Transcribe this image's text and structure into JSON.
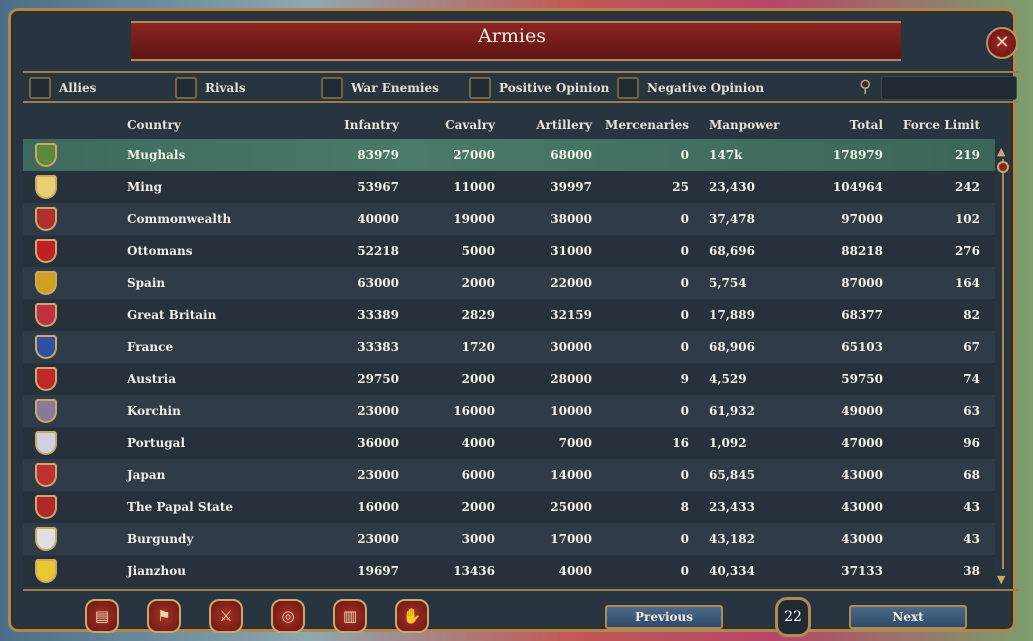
{
  "window": {
    "title": "Armies",
    "close_icon": "close-icon"
  },
  "filters": [
    {
      "label": "Allies"
    },
    {
      "label": "Rivals"
    },
    {
      "label": "War Enemies"
    },
    {
      "label": "Positive Opinion"
    },
    {
      "label": "Negative Opinion"
    }
  ],
  "search": {
    "value": "",
    "icon": "magnifier-icon"
  },
  "columns": {
    "country": "Country",
    "infantry": "Infantry",
    "cavalry": "Cavalry",
    "artillery": "Artillery",
    "mercenaries": "Mercenaries",
    "manpower": "Manpower",
    "total": "Total",
    "force_limit": "Force Limit"
  },
  "rows": [
    {
      "country": "Mughals",
      "infantry": "83979",
      "cavalry": "27000",
      "artillery": "68000",
      "mercenaries": "0",
      "manpower": "147k",
      "total": "178979",
      "force_limit": "219",
      "flag": "#5a8a3a",
      "selected": true
    },
    {
      "country": "Ming",
      "infantry": "53967",
      "cavalry": "11000",
      "artillery": "39997",
      "mercenaries": "25",
      "manpower": "23,430",
      "total": "104964",
      "force_limit": "242",
      "flag": "#e8d070"
    },
    {
      "country": "Commonwealth",
      "infantry": "40000",
      "cavalry": "19000",
      "artillery": "38000",
      "mercenaries": "0",
      "manpower": "37,478",
      "total": "97000",
      "force_limit": "102",
      "flag": "#b03030"
    },
    {
      "country": "Ottomans",
      "infantry": "52218",
      "cavalry": "5000",
      "artillery": "31000",
      "mercenaries": "0",
      "manpower": "68,696",
      "total": "88218",
      "force_limit": "276",
      "flag": "#c02020"
    },
    {
      "country": "Spain",
      "infantry": "63000",
      "cavalry": "2000",
      "artillery": "22000",
      "mercenaries": "0",
      "manpower": "5,754",
      "total": "87000",
      "force_limit": "164",
      "flag": "#d0a020"
    },
    {
      "country": "Great Britain",
      "infantry": "33389",
      "cavalry": "2829",
      "artillery": "32159",
      "mercenaries": "0",
      "manpower": "17,889",
      "total": "68377",
      "force_limit": "82",
      "flag": "#c03040"
    },
    {
      "country": "France",
      "infantry": "33383",
      "cavalry": "1720",
      "artillery": "30000",
      "mercenaries": "0",
      "manpower": "68,906",
      "total": "65103",
      "force_limit": "67",
      "flag": "#3050a0"
    },
    {
      "country": "Austria",
      "infantry": "29750",
      "cavalry": "2000",
      "artillery": "28000",
      "mercenaries": "9",
      "manpower": "4,529",
      "total": "59750",
      "force_limit": "74",
      "flag": "#c02828"
    },
    {
      "country": "Korchin",
      "infantry": "23000",
      "cavalry": "16000",
      "artillery": "10000",
      "mercenaries": "0",
      "manpower": "61,932",
      "total": "49000",
      "force_limit": "63",
      "flag": "#8a7a9a"
    },
    {
      "country": "Portugal",
      "infantry": "36000",
      "cavalry": "4000",
      "artillery": "7000",
      "mercenaries": "16",
      "manpower": "1,092",
      "total": "47000",
      "force_limit": "96",
      "flag": "#d0d0e0"
    },
    {
      "country": "Japan",
      "infantry": "23000",
      "cavalry": "6000",
      "artillery": "14000",
      "mercenaries": "0",
      "manpower": "65,845",
      "total": "43000",
      "force_limit": "68",
      "flag": "#c03030"
    },
    {
      "country": "The Papal State",
      "infantry": "16000",
      "cavalry": "2000",
      "artillery": "25000",
      "mercenaries": "8",
      "manpower": "23,433",
      "total": "43000",
      "force_limit": "43",
      "flag": "#b02828"
    },
    {
      "country": "Burgundy",
      "infantry": "23000",
      "cavalry": "3000",
      "artillery": "17000",
      "mercenaries": "0",
      "manpower": "43,182",
      "total": "43000",
      "force_limit": "43",
      "flag": "#e0e0e0"
    },
    {
      "country": "Jianzhou",
      "infantry": "19697",
      "cavalry": "13436",
      "artillery": "4000",
      "mercenaries": "0",
      "manpower": "40,334",
      "total": "37133",
      "force_limit": "38",
      "flag": "#e8c830"
    }
  ],
  "bottom_buttons": [
    {
      "icon": "ledger-icon",
      "glyph": "▤"
    },
    {
      "icon": "flag-icon",
      "glyph": "⚑"
    },
    {
      "icon": "crossed-swords-icon",
      "glyph": "⚔"
    },
    {
      "icon": "coins-icon",
      "glyph": "◎"
    },
    {
      "icon": "buildings-icon",
      "glyph": "▥"
    },
    {
      "icon": "handshake-icon",
      "glyph": "✋"
    }
  ],
  "pagination": {
    "previous": "Previous",
    "page": "22",
    "next": "Next"
  }
}
